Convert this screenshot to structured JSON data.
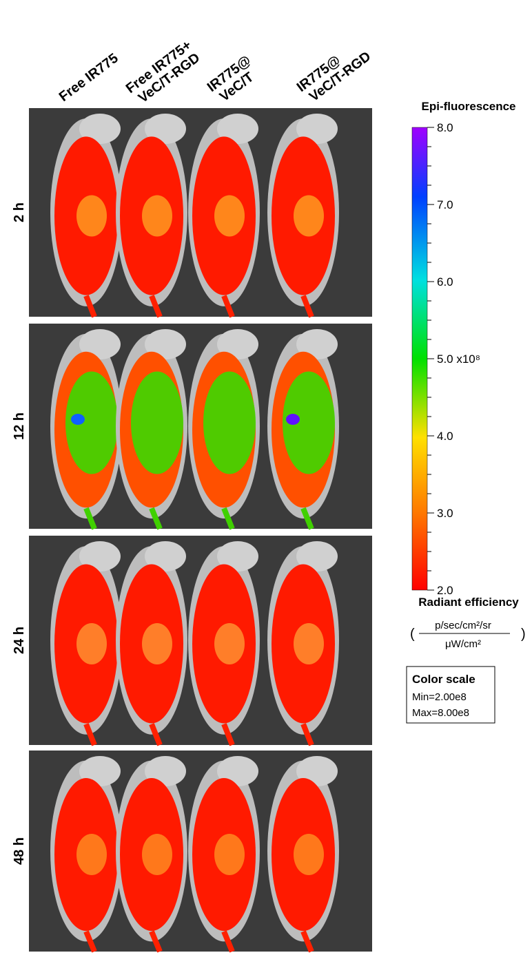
{
  "columns": [
    [
      "Free IR775"
    ],
    [
      "Free IR775+",
      "VeC/T-RGD"
    ],
    [
      "IR775@",
      "VeC/T"
    ],
    [
      "IR775@",
      "VeC/T-RGD"
    ]
  ],
  "rows": [
    "2 h",
    "12 h",
    "24 h",
    "48 h"
  ],
  "colorbar": {
    "title": "Epi-fluorescence",
    "lim": [
      2,
      8
    ],
    "ticks": [
      {
        "value": 8,
        "label": "8.0"
      },
      {
        "value": 7,
        "label": "7.0"
      },
      {
        "value": 6,
        "label": "6.0"
      },
      {
        "value": 5,
        "label": "5.0 x10⁸"
      },
      {
        "value": 4,
        "label": "4.0"
      },
      {
        "value": 3,
        "label": "3.0"
      },
      {
        "value": 2,
        "label": "2.0"
      }
    ],
    "quantity": "Radiant efficiency",
    "unit_numerator": "p/sec/cm²/sr",
    "unit_denominator": "μW/cm²"
  },
  "color_scale_box": {
    "title": "Color scale",
    "min": "Min=2.00e8",
    "max": "Max=8.00e8"
  }
}
